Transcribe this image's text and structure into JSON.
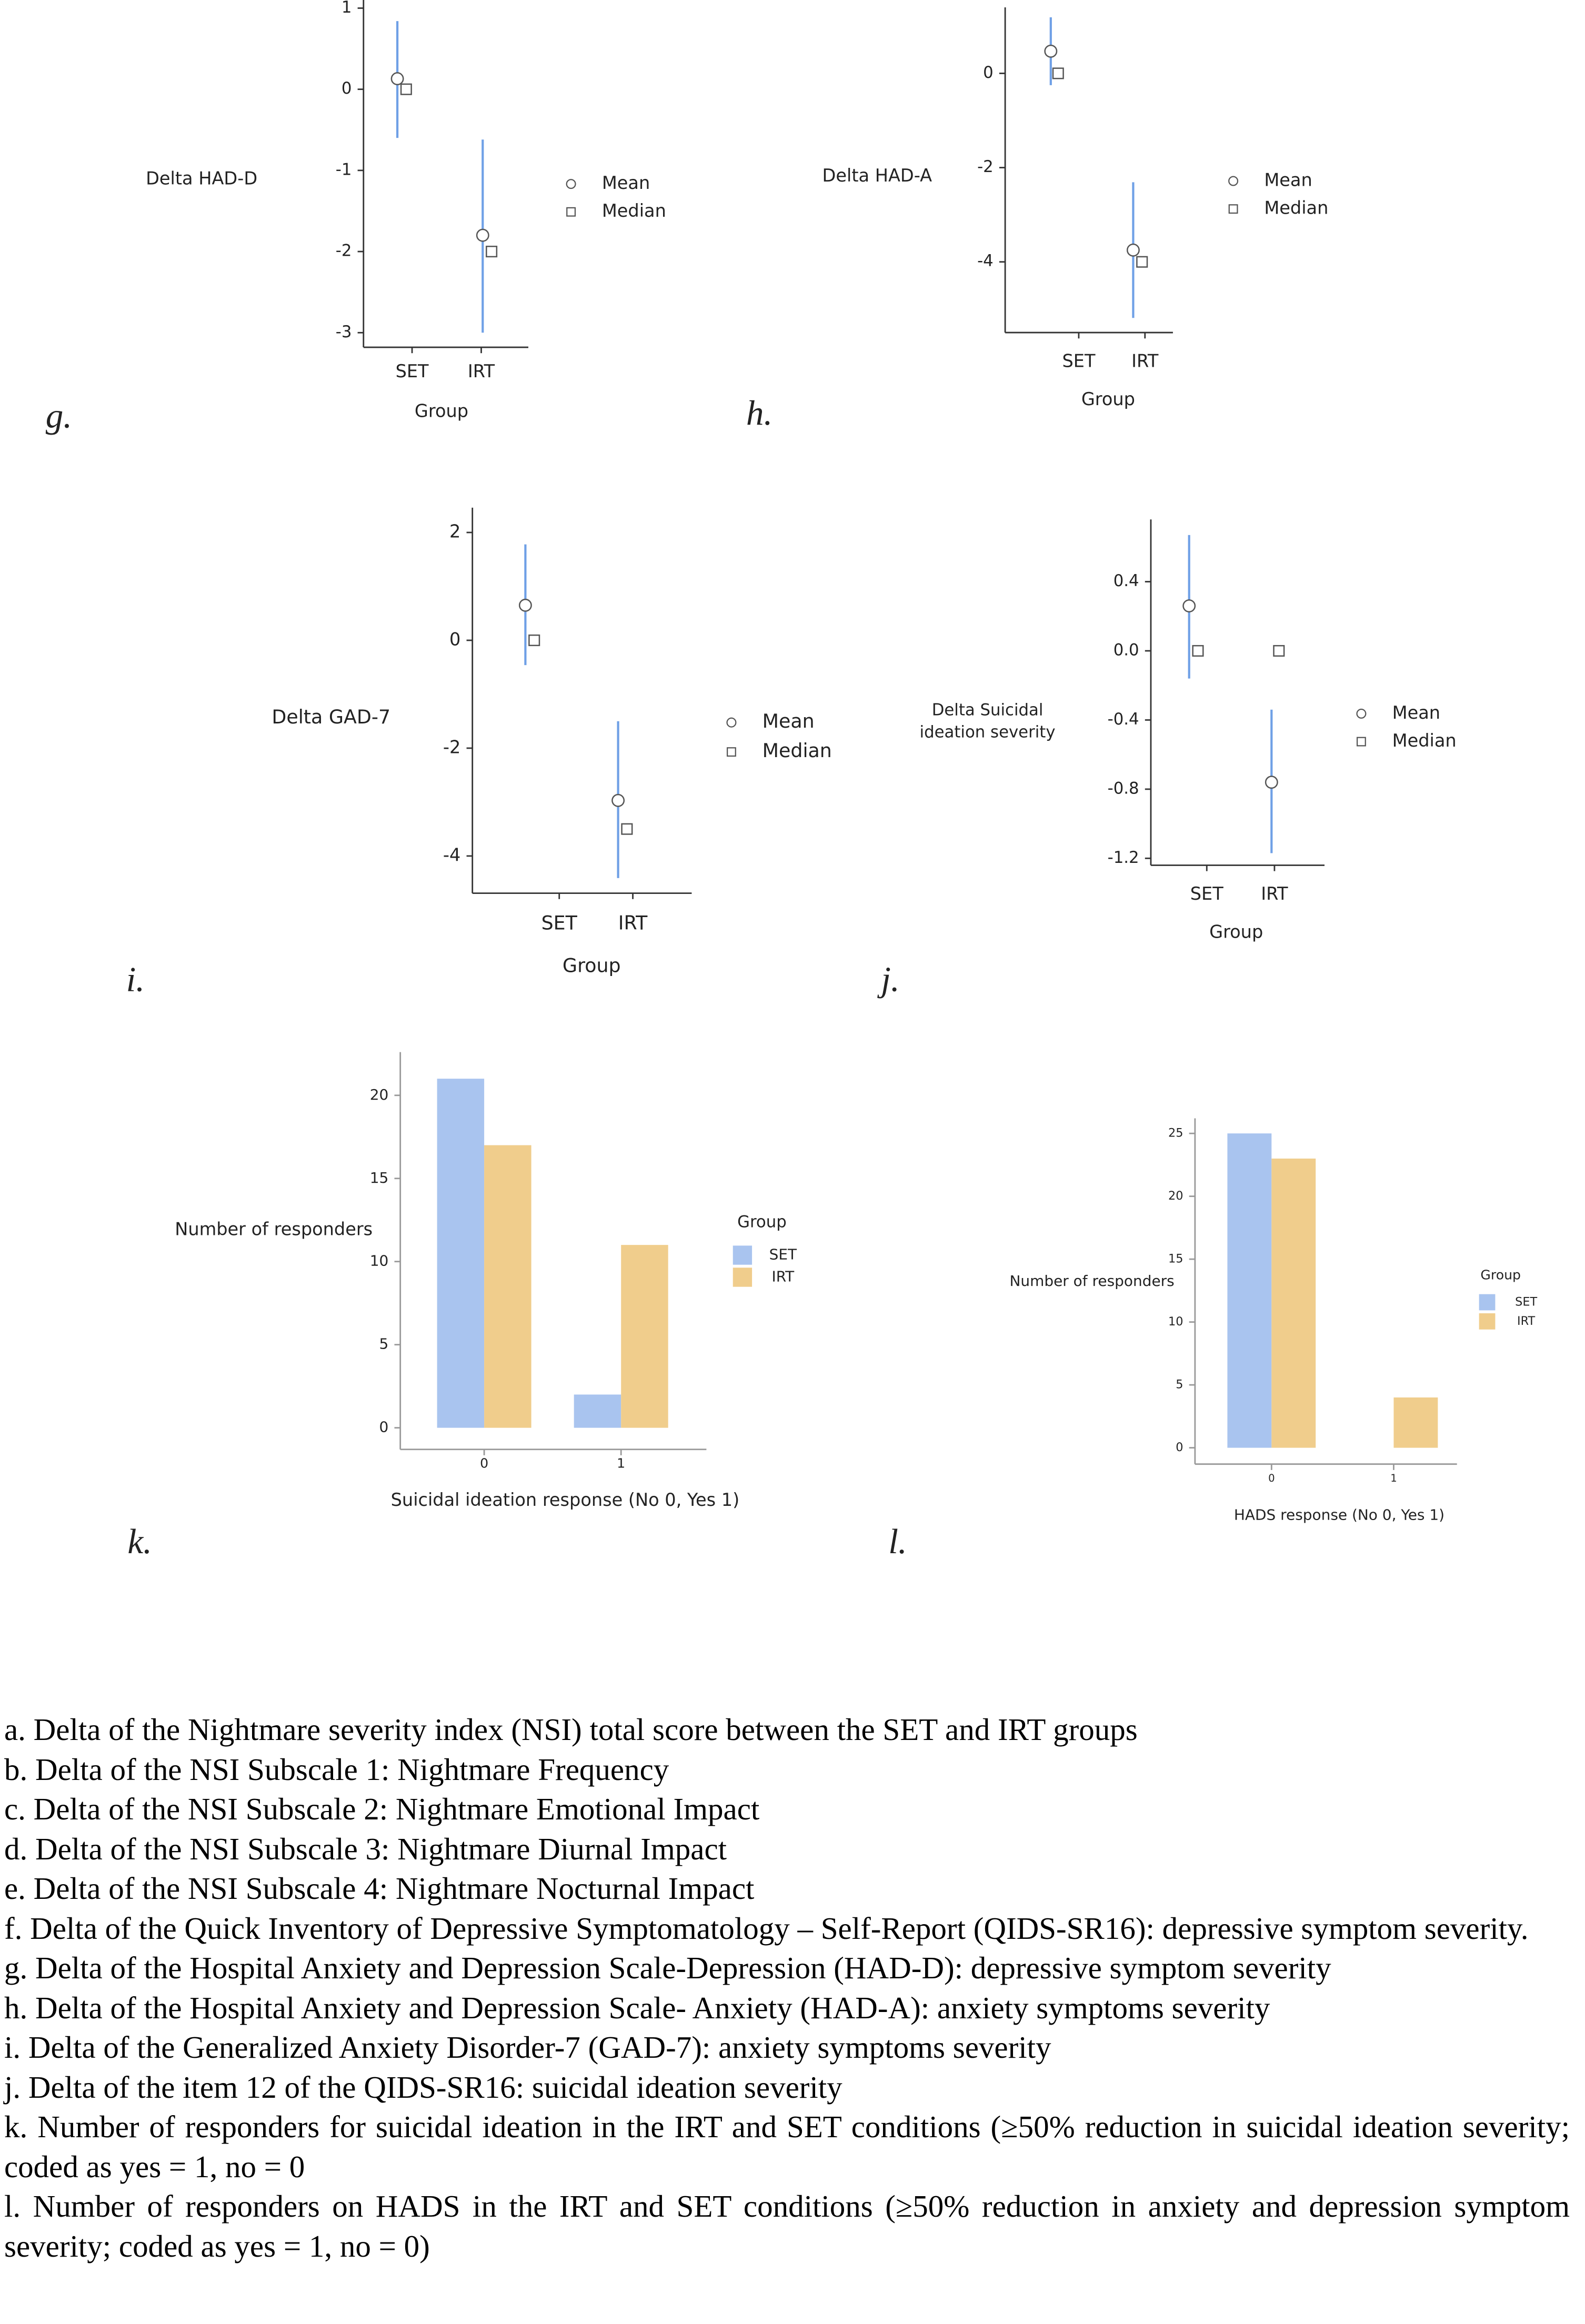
{
  "chart_data": [
    {
      "type": "point",
      "label": "g.",
      "ylabel": "Delta HAD-D",
      "xlabel": "Group",
      "categories": [
        "SET",
        "IRT"
      ],
      "series": [
        {
          "name": "Mean",
          "marker": "circle",
          "color": "#555555",
          "error_color": "#6fa0e6",
          "values": [
            0.13,
            -1.8
          ],
          "lower": [
            -0.6,
            -3.0
          ],
          "upper": [
            0.84,
            -0.62
          ]
        },
        {
          "name": "Median",
          "marker": "square",
          "color": "#555555",
          "values": [
            0,
            -2
          ]
        }
      ],
      "ylim": [
        -3.18,
        1.1
      ],
      "yticks": [
        1,
        0,
        -1,
        -2,
        -3
      ]
    },
    {
      "type": "point",
      "label": "h.",
      "ylabel": "Delta HAD-A",
      "xlabel": "Group",
      "categories": [
        "SET",
        "IRT"
      ],
      "series": [
        {
          "name": "Mean",
          "marker": "circle",
          "color": "#555555",
          "error_color": "#6fa0e6",
          "values": [
            0.47,
            -3.75
          ],
          "lower": [
            -0.25,
            -5.19
          ],
          "upper": [
            1.19,
            -2.31
          ]
        },
        {
          "name": "Median",
          "marker": "square",
          "color": "#555555",
          "values": [
            0,
            -4
          ]
        }
      ],
      "ylim": [
        -5.5,
        1.4
      ],
      "yticks": [
        0,
        -2,
        -4
      ]
    },
    {
      "type": "point",
      "label": "i.",
      "ylabel": "Delta GAD-7",
      "xlabel": "Group",
      "categories": [
        "SET",
        "IRT"
      ],
      "series": [
        {
          "name": "Mean",
          "marker": "circle",
          "color": "#555555",
          "error_color": "#6fa0e6",
          "values": [
            0.65,
            -2.97
          ],
          "lower": [
            -0.46,
            -4.41
          ],
          "upper": [
            1.78,
            -1.5
          ]
        },
        {
          "name": "Median",
          "marker": "square",
          "color": "#555555",
          "values": [
            0,
            -3.5
          ]
        }
      ],
      "ylim": [
        -4.69,
        2.46
      ],
      "yticks": [
        2,
        0,
        -2,
        -4
      ]
    },
    {
      "type": "point",
      "label": "j.",
      "ylabel": [
        "Delta Suicidal",
        "ideation severity"
      ],
      "xlabel": "Group",
      "categories": [
        "SET",
        "IRT"
      ],
      "series": [
        {
          "name": "Mean",
          "marker": "circle",
          "color": "#555555",
          "error_color": "#6fa0e6",
          "values": [
            0.26,
            -0.76
          ],
          "lower": [
            -0.16,
            -1.17
          ],
          "upper": [
            0.67,
            -0.34
          ]
        },
        {
          "name": "Median",
          "marker": "square",
          "color": "#555555",
          "values": [
            0,
            0
          ]
        }
      ],
      "ylim": [
        -1.24,
        0.76
      ],
      "yticks": [
        0.4,
        {
          "value": 0,
          "label": "0.0"
        },
        -0.4,
        -0.8,
        -1.2
      ]
    },
    {
      "type": "bar",
      "label": "k.",
      "ylabel": "Number of responders",
      "xlabel": "Suicidal ideation response (No 0, Yes 1)",
      "legend_title": "Group",
      "categories": [
        "0",
        "1"
      ],
      "series": [
        {
          "name": "SET",
          "color": "#a9c4ef",
          "values": [
            21,
            2
          ]
        },
        {
          "name": "IRT",
          "color": "#f0cd8c",
          "values": [
            17,
            11
          ]
        }
      ],
      "ylim": [
        -1.3,
        22.6
      ],
      "yticks": [
        0,
        5,
        10,
        15,
        20
      ]
    },
    {
      "type": "bar",
      "label": "l.",
      "ylabel": "Number of responders",
      "xlabel": "HADS response (No 0, Yes 1)",
      "legend_title": "Group",
      "categories": [
        "0",
        "1"
      ],
      "series": [
        {
          "name": "SET",
          "color": "#a9c4ef",
          "values": [
            25,
            0
          ]
        },
        {
          "name": "IRT",
          "color": "#f0cd8c",
          "values": [
            23,
            4
          ]
        }
      ],
      "ylim": [
        -1.3,
        26.2
      ],
      "yticks": [
        0,
        5,
        10,
        15,
        20,
        25
      ]
    }
  ],
  "caption": [
    "a. Delta of the Nightmare severity index (NSI) total score between the SET and IRT groups",
    "b. Delta of the NSI Subscale 1: Nightmare Frequency",
    "c. Delta of the NSI Subscale 2: Nightmare Emotional Impact",
    "d. Delta of the NSI Subscale 3: Nightmare Diurnal Impact",
    "e. Delta of the NSI Subscale 4: Nightmare Nocturnal Impact",
    "f. Delta of the Quick Inventory of Depressive Symptomatology – Self-Report (QIDS-SR16): depressive symptom severity.",
    "g. Delta of the Hospital Anxiety and Depression Scale-Depression (HAD-D): depressive symptom severity",
    "h. Delta of the Hospital Anxiety and Depression Scale- Anxiety (HAD-A): anxiety symptoms severity",
    "i. Delta of the Generalized Anxiety Disorder-7 (GAD-7): anxiety symptoms severity",
    "j. Delta of the item 12 of the QIDS-SR16: suicidal ideation severity",
    "k. Number of responders for suicidal ideation in the IRT and SET conditions (≥50% reduction in suicidal ideation severity; coded as yes = 1, no = 0",
    "l.  Number of responders on HADS in the IRT and SET conditions (≥50% reduction in anxiety and depression symptom severity; coded as yes = 1, no = 0)"
  ]
}
